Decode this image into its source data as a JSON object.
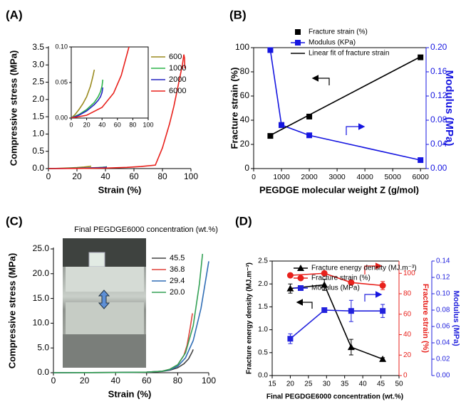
{
  "chart_data": [
    {
      "type": "line",
      "label": "(A)",
      "xlabel": "Strain (%)",
      "ylabel": "Compressive stress (MPa)",
      "xlim": [
        0,
        100
      ],
      "xticks": [
        0,
        20,
        40,
        60,
        80,
        100
      ],
      "ylim": [
        0,
        3.5
      ],
      "yticks": [
        {
          "value": 0,
          "label": "0.0"
        },
        0.5,
        {
          "value": 1,
          "label": "1.0"
        },
        1.5,
        {
          "value": 2,
          "label": "2.0"
        },
        2.5,
        {
          "value": 3,
          "label": "3.0"
        },
        3.5
      ],
      "legend": "upper right",
      "series": [
        {
          "name": "600",
          "color": "#9a8a1e",
          "x": [
            0,
            5,
            10,
            15,
            20,
            25,
            28,
            30
          ],
          "values": [
            0,
            0.005,
            0.012,
            0.02,
            0.03,
            0.045,
            0.058,
            0.068
          ]
        },
        {
          "name": "1000",
          "color": "#2db34a",
          "x": [
            0,
            10,
            20,
            30,
            35,
            38,
            40,
            41
          ],
          "values": [
            0,
            0.005,
            0.012,
            0.022,
            0.03,
            0.037,
            0.045,
            0.054
          ]
        },
        {
          "name": "2000",
          "color": "#2424c0",
          "x": [
            0,
            10,
            20,
            30,
            35,
            38,
            40,
            41
          ],
          "values": [
            0,
            0.004,
            0.01,
            0.019,
            0.025,
            0.03,
            0.036,
            0.043
          ]
        },
        {
          "name": "6000",
          "color": "#e8211c",
          "x": [
            0,
            20,
            40,
            55,
            65,
            75,
            80,
            85,
            88,
            91,
            94,
            95,
            95.5,
            95.7
          ],
          "values": [
            0,
            0.004,
            0.015,
            0.035,
            0.06,
            0.1,
            0.6,
            1.3,
            1.8,
            2.4,
            3.0,
            3.3,
            3.2,
            2.9
          ]
        }
      ],
      "inset": {
        "xlim": [
          0,
          100
        ],
        "xticks": [
          0,
          20,
          40,
          60,
          80,
          100
        ],
        "ylim": [
          0,
          0.1
        ],
        "yticks": [
          {
            "value": 0,
            "label": "0.00"
          },
          0.05,
          {
            "value": 0.1,
            "label": "0.10"
          }
        ]
      }
    },
    {
      "type": "line",
      "label": "(B)",
      "xlabel": "PEGDGE molecular weight Z (g/mol)",
      "ylabel": "Fracture strain (%)",
      "y2label": "Modulus (MPa)",
      "y2color": "#1515e0",
      "xlim": [
        0,
        6200
      ],
      "xticks": [
        0,
        1000,
        2000,
        3000,
        4000,
        5000,
        6000
      ],
      "ylim": [
        0,
        100
      ],
      "yticks": [
        0,
        20,
        40,
        60,
        80,
        100
      ],
      "y2lim": [
        0,
        0.2
      ],
      "y2ticks": [
        {
          "value": 0,
          "label": "0.00"
        },
        0.04,
        0.08,
        0.12,
        0.16,
        {
          "value": 0.2,
          "label": "0.20"
        }
      ],
      "legend": "top",
      "series": [
        {
          "name": "Fracture strain (%)",
          "color": "#000000",
          "marker": "square",
          "line": false,
          "x": [
            600,
            1000,
            2000,
            6000
          ],
          "values": [
            27,
            36,
            43,
            92
          ]
        },
        {
          "name": "Modulus (KPa)",
          "color": "#1515e0",
          "marker": "square",
          "axis": "y2",
          "x": [
            600,
            1000,
            2000,
            6000
          ],
          "values": [
            0.196,
            0.072,
            0.055,
            0.014
          ]
        },
        {
          "name": "Linear fit of fracture strain",
          "color": "#000000",
          "x": [
            600,
            6000
          ],
          "values": [
            27.5,
            92.5
          ]
        }
      ]
    },
    {
      "type": "line",
      "label": "(C)",
      "title": "Final PEGDGE6000 concentration (wt.%)",
      "xlabel": "Strain (%)",
      "ylabel": "Compressive stress (MPa)",
      "xlim": [
        0,
        100
      ],
      "xticks": [
        0,
        20,
        40,
        60,
        80,
        100
      ],
      "ylim": [
        0,
        25
      ],
      "yticks": [
        {
          "value": 0,
          "label": "0.0"
        },
        {
          "value": 5,
          "label": "5.0"
        },
        {
          "value": 10,
          "label": "10.0"
        },
        {
          "value": 15,
          "label": "15.0"
        },
        {
          "value": 20,
          "label": "20.0"
        },
        {
          "value": 25,
          "label": "25.0"
        }
      ],
      "legend": "upper right",
      "series": [
        {
          "name": "45.5",
          "color": "#444444",
          "x": [
            0,
            20,
            40,
            60,
            70,
            75,
            80,
            84,
            87,
            89,
            90
          ],
          "values": [
            0,
            0.02,
            0.05,
            0.1,
            0.25,
            0.5,
            1.0,
            1.8,
            2.8,
            4.0,
            4.7
          ]
        },
        {
          "name": "36.8",
          "color": "#e0443c",
          "x": [
            0,
            20,
            40,
            60,
            70,
            75,
            80,
            84,
            86,
            88,
            89.5
          ],
          "values": [
            0,
            0.02,
            0.05,
            0.12,
            0.3,
            0.7,
            1.6,
            3.5,
            5.5,
            9,
            12
          ]
        },
        {
          "name": "29.4",
          "color": "#2f6db5",
          "x": [
            0,
            20,
            40,
            60,
            70,
            75,
            80,
            85,
            90,
            95,
            100
          ],
          "values": [
            0,
            0.02,
            0.05,
            0.12,
            0.3,
            0.6,
            1.3,
            3,
            6.5,
            13,
            22.5
          ]
        },
        {
          "name": "20.0",
          "color": "#33a155",
          "x": [
            0,
            20,
            40,
            60,
            70,
            75,
            80,
            85,
            90,
            94,
            96
          ],
          "values": [
            0,
            0.02,
            0.05,
            0.12,
            0.3,
            0.7,
            1.6,
            4,
            9.5,
            18,
            24
          ]
        }
      ]
    },
    {
      "type": "line",
      "label": "(D)",
      "xlabel": "Final PEGDGE6000 concentration (wt.%)",
      "ylabel": "Fracture energy density (MJ.m⁻³)",
      "y2label": "Fracture strain (%)",
      "y3label": "Modulus (MPa)",
      "y2color": "#e8211c",
      "y3color": "#2222dd",
      "xlim": [
        15,
        50
      ],
      "xticks": [
        15,
        20,
        25,
        30,
        35,
        40,
        45,
        50
      ],
      "ylim": [
        0,
        2.5
      ],
      "yticks": [
        {
          "value": 0,
          "label": "0.0"
        },
        0.5,
        {
          "value": 1,
          "label": "1.0"
        },
        1.5,
        {
          "value": 2,
          "label": "2.0"
        },
        2.5
      ],
      "y2lim": [
        0,
        112
      ],
      "y2ticks": [
        0,
        20,
        40,
        60,
        80,
        100
      ],
      "y3lim": [
        0,
        0.14
      ],
      "y3ticks": [
        {
          "value": 0,
          "label": "0.00"
        },
        0.02,
        0.04,
        0.06,
        0.08,
        {
          "value": 0.1,
          "label": "0.10"
        },
        0.12,
        0.14
      ],
      "legend": "upper left",
      "series": [
        {
          "name": "Fracture energy density (MJ.m⁻³)",
          "color": "#000000",
          "marker": "triangle",
          "x": [
            20,
            29.4,
            36.8,
            45.5
          ],
          "values": [
            1.9,
            1.98,
            0.62,
            0.36
          ],
          "errors": [
            0.1,
            0.12,
            0.17,
            0.03
          ]
        },
        {
          "name": "Fracture strain (%)",
          "color": "#e8211c",
          "marker": "circle",
          "axis": "y2",
          "x": [
            20,
            29.4,
            36.8,
            45.5
          ],
          "values": [
            98,
            100,
            91,
            88
          ],
          "errors": [
            2,
            2,
            2,
            4
          ]
        },
        {
          "name": "Modulus (MPa)",
          "color": "#2222dd",
          "marker": "square",
          "axis": "y3",
          "x": [
            20,
            29.4,
            36.8,
            45.5
          ],
          "values": [
            0.045,
            0.08,
            0.079,
            0.079
          ],
          "errors": [
            0.006,
            0.003,
            0.013,
            0.008
          ]
        }
      ]
    }
  ]
}
